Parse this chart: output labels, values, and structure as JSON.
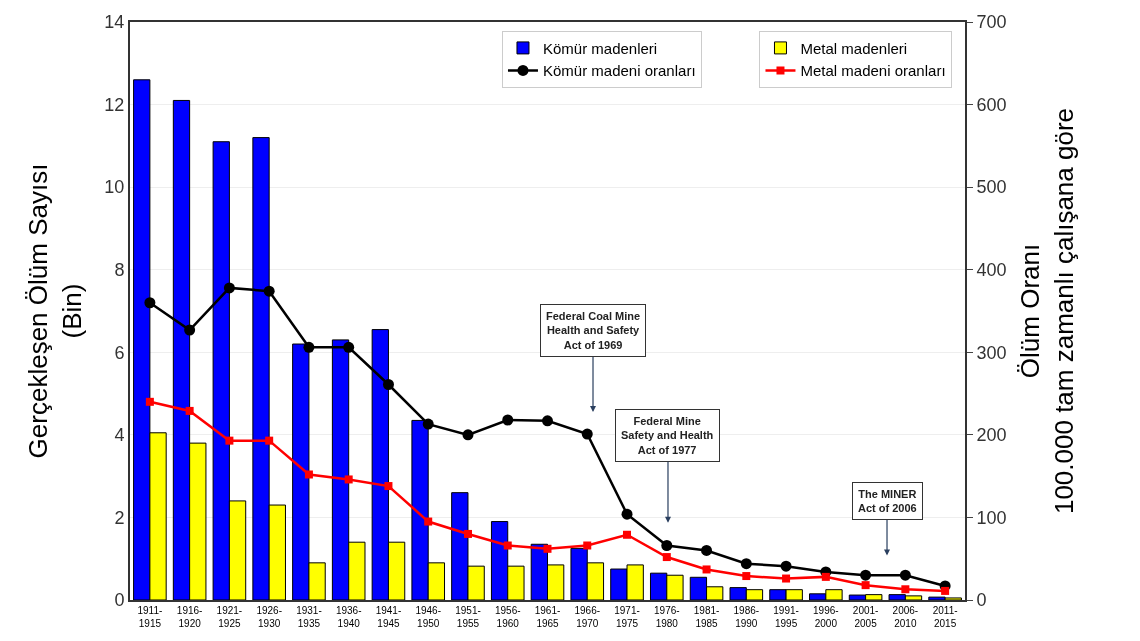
{
  "chart_data": {
    "type": "bar",
    "categories": [
      "1911-\n1915",
      "1916-\n1920",
      "1921-\n1925",
      "1926-\n1930",
      "1931-\n1935",
      "1936-\n1940",
      "1941-\n1945",
      "1946-\n1950",
      "1951-\n1955",
      "1956-\n1960",
      "1961-\n1965",
      "1966-\n1970",
      "1971-\n1975",
      "1976-\n1980",
      "1981-\n1985",
      "1986-\n1990",
      "1991-\n1995",
      "1996-\n2000",
      "2001-\n2005",
      "2006-\n2010",
      "2011-\n2015"
    ],
    "series": [
      {
        "name": "Kömür madenleri",
        "color": "#0000ff",
        "values": [
          12.6,
          12.1,
          11.1,
          11.2,
          6.2,
          6.3,
          6.55,
          4.35,
          2.6,
          1.9,
          1.35,
          1.25,
          0.75,
          0.65,
          0.55,
          0.3,
          0.25,
          0.15,
          0.12,
          0.13,
          0.07
        ]
      },
      {
        "name": "Metal madenleri",
        "color": "#ffff00",
        "values": [
          4.05,
          3.8,
          2.4,
          2.3,
          0.9,
          1.4,
          1.4,
          0.9,
          0.82,
          0.82,
          0.85,
          0.9,
          0.85,
          0.6,
          0.32,
          0.25,
          0.25,
          0.25,
          0.13,
          0.1,
          0.05
        ]
      },
      {
        "name": "Kömür madeni oranları",
        "type": "line",
        "axis": "y2",
        "marker": "circle",
        "color": "#000000",
        "values": [
          360,
          327,
          378,
          374,
          306,
          306,
          261,
          213,
          200,
          218,
          217,
          201,
          104,
          66,
          60,
          44,
          41,
          34,
          30,
          30,
          17
        ]
      },
      {
        "name": "Metal madeni oranları",
        "type": "line",
        "axis": "y2",
        "marker": "square",
        "color": "#ff0000",
        "values": [
          240,
          229,
          193,
          193,
          152,
          146,
          138,
          95,
          80,
          66,
          62,
          66,
          79,
          52,
          37,
          29,
          26,
          28,
          18,
          13,
          11
        ]
      }
    ],
    "ylabel": "Gerçekleşen Ölüm Sayısı\n(Bin)",
    "y2label": "Ölüm Oranı\n100.000 tam zamanlı çalışana göre",
    "ylim": [
      0,
      14
    ],
    "yticks": [
      0,
      2,
      4,
      6,
      8,
      10,
      12,
      14
    ],
    "y2lim": [
      0,
      700
    ],
    "y2ticks": [
      0,
      100,
      200,
      300,
      400,
      500,
      600,
      700
    ],
    "grid": "y",
    "legend": "top right",
    "line_style": "solid",
    "annotations": [
      "Federal Coal Mine\nHealth and Safety\nAct of 1969",
      "Federal Mine\nSafety and Health\nAct of 1977",
      "The MINER\nAct of 2006"
    ]
  }
}
